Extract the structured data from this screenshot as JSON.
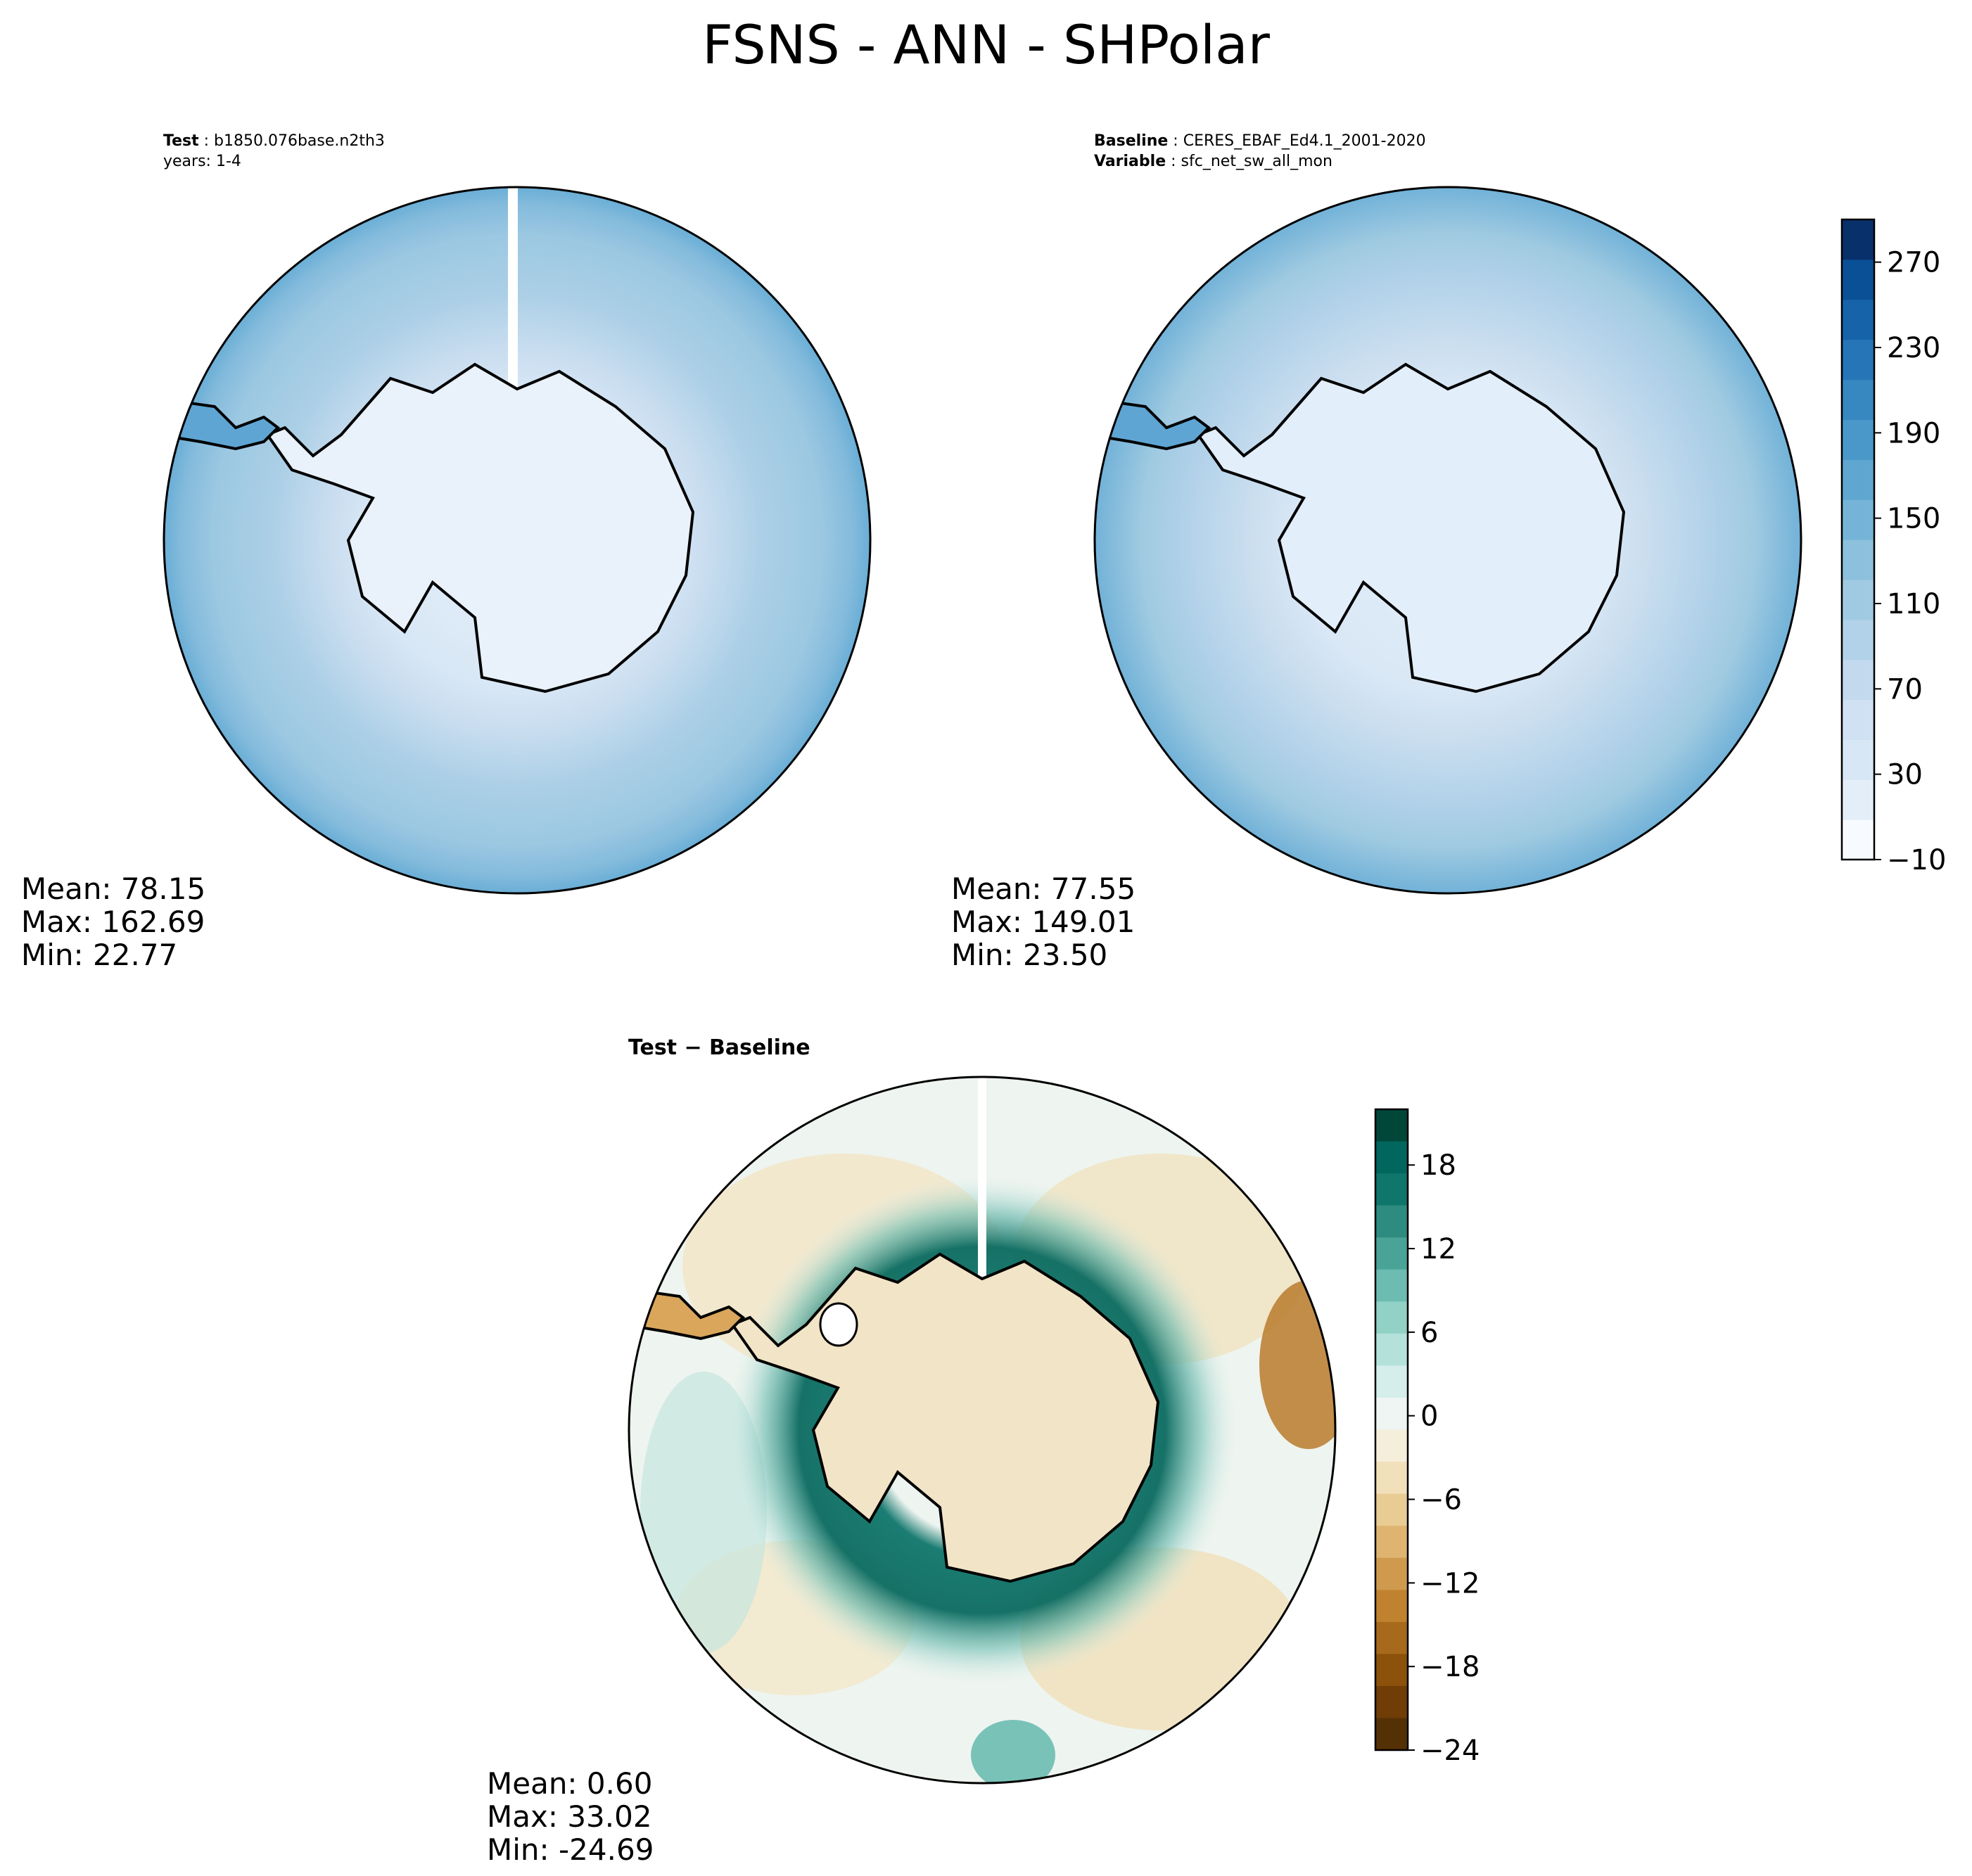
{
  "title": "FSNS - ANN - SHPolar",
  "test_panel": {
    "label": "Test",
    "case": "b1850.076base.n2th3",
    "years": "years: 1-4",
    "stats": {
      "mean": "Mean: 78.15",
      "max": "Max: 162.69",
      "min": "Min: 22.77"
    }
  },
  "baseline_panel": {
    "label": "Baseline",
    "case": "CERES_EBAF_Ed4.1_2001-2020",
    "variable_label": "Variable",
    "variable": "sfc_net_sw_all_mon",
    "stats": {
      "mean": "Mean: 77.55",
      "max": "Max: 149.01",
      "min": "Min: 23.50"
    }
  },
  "diff_panel": {
    "label": "Test − Baseline",
    "stats": {
      "mean": "Mean:  0.60",
      "max": "Max: 33.02",
      "min": "Min: -24.69"
    }
  },
  "main_colorbar": {
    "ticks": [
      "270",
      "230",
      "190",
      "150",
      "110",
      "70",
      "30",
      "−10"
    ],
    "levels": [
      -10,
      10,
      30,
      50,
      70,
      90,
      110,
      130,
      150,
      170,
      190,
      210,
      230,
      250,
      270,
      290
    ],
    "colors": [
      "#f7fbff",
      "#e3eef9",
      "#d8e7f5",
      "#cfe1f2",
      "#c3d9ee",
      "#b1d2e8",
      "#a0cae1",
      "#8cc0dd",
      "#75b4d8",
      "#5fa6d1",
      "#4a98c9",
      "#3787c0",
      "#2575b7",
      "#1663aa",
      "#0a5096",
      "#08306b"
    ]
  },
  "diff_colorbar": {
    "ticks": [
      "18",
      "12",
      "6",
      "0",
      "−6",
      "−12",
      "−18",
      "−24"
    ],
    "colors_top_to_bottom": [
      "#00473a",
      "#01665e",
      "#0f766c",
      "#2e8b80",
      "#4aa397",
      "#6cbcb1",
      "#91d1c6",
      "#b4e2da",
      "#d5eeeb",
      "#eef5f3",
      "#f5eedb",
      "#f1e0b9",
      "#e8cc94",
      "#dfb470",
      "#d09a4e",
      "#c0822f",
      "#a7691b",
      "#8c510a",
      "#703d07",
      "#543005"
    ]
  },
  "colors": {
    "coastline": "#000000",
    "panel_edge": "#000000"
  }
}
